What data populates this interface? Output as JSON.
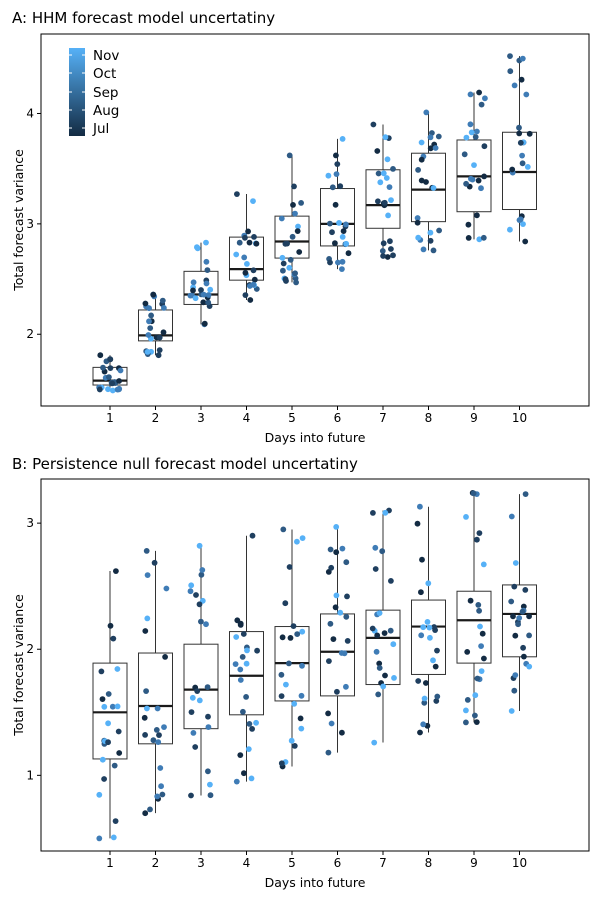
{
  "colors": {
    "Jul": "#132b43",
    "Aug": "#1f3f5f",
    "Sep": "#2e5a84",
    "Oct": "#3f7cb6",
    "Nov": "#56b1f7"
  },
  "legend": {
    "items": [
      "Nov",
      "Oct",
      "Sep",
      "Aug",
      "Jul"
    ]
  },
  "chart_data": [
    {
      "type": "box",
      "title": "A: HHM forecast model uncertatiny",
      "xlabel": "Days into future",
      "ylabel": "Total forecast variance",
      "ylim": [
        1.35,
        4.72
      ],
      "yticks": [
        2,
        3,
        4
      ],
      "categories": [
        "1",
        "2",
        "3",
        "4",
        "5",
        "6",
        "7",
        "8",
        "9",
        "10"
      ],
      "boxes": [
        {
          "q1": 1.54,
          "median": 1.58,
          "q3": 1.7,
          "min": 1.49,
          "max": 1.81
        },
        {
          "q1": 1.94,
          "median": 1.99,
          "q3": 2.22,
          "min": 1.81,
          "max": 2.36
        },
        {
          "q1": 2.27,
          "median": 2.36,
          "q3": 2.57,
          "min": 2.09,
          "max": 2.83
        },
        {
          "q1": 2.49,
          "median": 2.59,
          "q3": 2.88,
          "min": 2.31,
          "max": 3.27
        },
        {
          "q1": 2.69,
          "median": 2.84,
          "q3": 3.07,
          "min": 2.47,
          "max": 3.62
        },
        {
          "q1": 2.8,
          "median": 3.0,
          "q3": 3.32,
          "min": 2.59,
          "max": 3.77
        },
        {
          "q1": 2.96,
          "median": 3.17,
          "q3": 3.49,
          "min": 2.7,
          "max": 3.9
        },
        {
          "q1": 3.02,
          "median": 3.31,
          "q3": 3.64,
          "min": 2.76,
          "max": 4.01
        },
        {
          "q1": 3.11,
          "median": 3.43,
          "q3": 3.76,
          "min": 2.86,
          "max": 4.19
        },
        {
          "q1": 3.13,
          "median": 3.47,
          "q3": 3.83,
          "min": 2.84,
          "max": 4.52
        }
      ]
    },
    {
      "type": "box",
      "title": "B: Persistence null forecast model uncertatiny",
      "xlabel": "Days into future",
      "ylabel": "Total forecast variance",
      "ylim": [
        0.4,
        3.35
      ],
      "yticks": [
        1,
        2,
        3
      ],
      "categories": [
        "1",
        "2",
        "3",
        "4",
        "5",
        "6",
        "7",
        "8",
        "9",
        "10"
      ],
      "boxes": [
        {
          "q1": 1.13,
          "median": 1.5,
          "q3": 1.89,
          "min": 0.5,
          "max": 2.62
        },
        {
          "q1": 1.25,
          "median": 1.55,
          "q3": 1.97,
          "min": 0.7,
          "max": 2.78
        },
        {
          "q1": 1.37,
          "median": 1.68,
          "q3": 2.04,
          "min": 0.84,
          "max": 2.82
        },
        {
          "q1": 1.48,
          "median": 1.79,
          "q3": 2.14,
          "min": 0.95,
          "max": 2.9
        },
        {
          "q1": 1.59,
          "median": 1.89,
          "q3": 2.18,
          "min": 1.07,
          "max": 2.95
        },
        {
          "q1": 1.63,
          "median": 1.98,
          "q3": 2.28,
          "min": 1.18,
          "max": 2.97
        },
        {
          "q1": 1.72,
          "median": 2.09,
          "q3": 2.31,
          "min": 1.26,
          "max": 3.1
        },
        {
          "q1": 1.8,
          "median": 2.18,
          "q3": 2.39,
          "min": 1.34,
          "max": 3.13
        },
        {
          "q1": 1.89,
          "median": 2.23,
          "q3": 2.46,
          "min": 1.42,
          "max": 3.24
        },
        {
          "q1": 1.94,
          "median": 2.28,
          "q3": 2.51,
          "min": 1.51,
          "max": 3.23
        }
      ]
    }
  ]
}
